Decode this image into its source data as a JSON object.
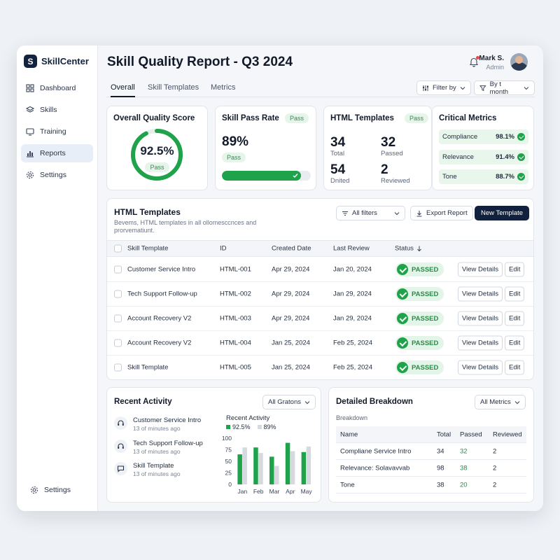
{
  "brand": {
    "name": "SkillCenter",
    "logo_letter": "S"
  },
  "sidebar": {
    "items": [
      {
        "label": "Dashboard",
        "icon": "grid-icon"
      },
      {
        "label": "Skills",
        "icon": "layers-icon"
      },
      {
        "label": "Training",
        "icon": "monitor-icon"
      },
      {
        "label": "Reports",
        "icon": "bar-chart-icon",
        "active": true
      },
      {
        "label": "Settings",
        "icon": "gear-icon"
      }
    ],
    "bottom": {
      "label": "Settings",
      "icon": "gear-icon"
    }
  },
  "header": {
    "title": "Skill Quality Report - Q3 2024",
    "user_name": "Mark S.",
    "user_role": "Admin"
  },
  "tabs": [
    "Overall",
    "Skill Templates",
    "Metrics"
  ],
  "toolbar": {
    "filter_by": "Filter by",
    "month": "By t month"
  },
  "quality_score": {
    "title": "Overall Quality Score",
    "value": "92.5%",
    "fraction": 0.925,
    "badge": "Pass"
  },
  "pass_rate": {
    "title": "Skill Pass Rate",
    "badge": "Pass",
    "value": "89%",
    "sub_badge": "Pass",
    "fraction": 0.89
  },
  "html_templates_card": {
    "title": "HTML Templates",
    "badge": "Pass",
    "stats": [
      {
        "value": "34",
        "label": "Total"
      },
      {
        "value": "32",
        "label": "Passed"
      },
      {
        "value": "54",
        "label": "Dnited"
      },
      {
        "value": "2",
        "label": "Reviewed"
      }
    ]
  },
  "critical_metrics": {
    "title": "Critical Metrics",
    "items": [
      {
        "label": "Compliance",
        "value": "98.1%"
      },
      {
        "label": "Relevance",
        "value": "91.4%"
      },
      {
        "label": "Tone",
        "value": "88.7%"
      }
    ]
  },
  "templates_table": {
    "title": "HTML Templates",
    "subtitle_line1": "Bevems, HTML templates in all ollomesccnces and",
    "subtitle_line2": "prorvematiunt.",
    "all_filters": "All filters",
    "export": "Export Report",
    "new": "New Template",
    "columns": [
      "Skill Template",
      "ID",
      "Created Date",
      "Last Review",
      "Status"
    ],
    "status_sort_icon": "arrow-down-icon",
    "view_label": "View Details",
    "edit_label": "Edit",
    "rows": [
      {
        "name": "Customer Service Intro",
        "id": "HTML-001",
        "created": "Apr 29, 2024",
        "review": "Jan 20, 2024",
        "status": "PASSED"
      },
      {
        "name": "Tech Support Follow-up",
        "id": "HTML-002",
        "created": "Apr 29, 2024",
        "review": "Jan 29, 2024",
        "status": "PASSED"
      },
      {
        "name": "Account Recovery V2",
        "id": "HTML-003",
        "created": "Apr 29, 2024",
        "review": "Jan 29, 2024",
        "status": "PASSED"
      },
      {
        "name": "Account Recovery V2",
        "id": "HTML-004",
        "created": "Jan 25, 2024",
        "review": "Feb 25, 2024",
        "status": "PASSED"
      },
      {
        "name": "Skill Template",
        "id": "HTML-005",
        "created": "Jan 25, 2024",
        "review": "Feb 25, 2024",
        "status": "PASSED"
      }
    ]
  },
  "recent_activity": {
    "title": "Recent Activity",
    "dropdown": "All Gratons",
    "items": [
      {
        "title": "Customer Service Intro",
        "time": "13 of minutes ago",
        "icon": "headset-icon"
      },
      {
        "title": "Tech Support Follow-up",
        "time": "13 of minutes ago",
        "icon": "headset-icon"
      },
      {
        "title": "Skill Template",
        "time": "13 of minutes ago",
        "icon": "chat-icon"
      }
    ]
  },
  "chart_data": {
    "type": "bar",
    "title": "Recent Activity",
    "categories": [
      "Jan",
      "Feb",
      "Mar",
      "Apr",
      "May"
    ],
    "series": [
      {
        "name": "92.5%",
        "color": "#1fa34a",
        "values": [
          65,
          80,
          60,
          90,
          70
        ]
      },
      {
        "name": "89%",
        "color": "#d6d9de",
        "values": [
          80,
          68,
          40,
          72,
          82
        ]
      }
    ],
    "ylim": [
      0,
      100
    ],
    "yticks": [
      0,
      25,
      50,
      75,
      100
    ]
  },
  "breakdown": {
    "title": "Detailed Breakdown",
    "dropdown": "All Metrics",
    "label": "Breakdown",
    "columns": [
      "Name",
      "Total",
      "Passed",
      "Reviewed"
    ],
    "rows": [
      {
        "name": "Compliane Service Intro",
        "total": "34",
        "passed": "32",
        "reviewed": "2"
      },
      {
        "name": "Relevance: Solavavvab",
        "total": "98",
        "passed": "38",
        "reviewed": "2"
      },
      {
        "name": "Tone",
        "total": "38",
        "passed": "20",
        "reviewed": "2"
      }
    ]
  }
}
